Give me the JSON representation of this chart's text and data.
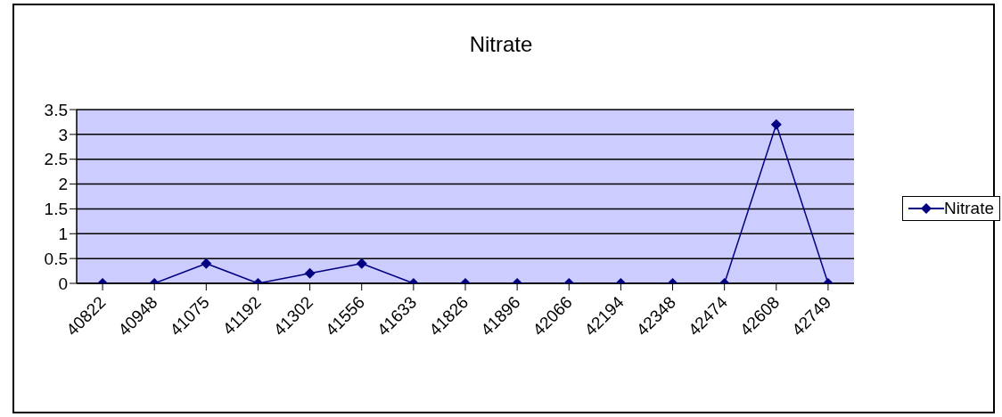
{
  "chart_data": {
    "type": "line",
    "title": "Nitrate",
    "categories": [
      "40822",
      "40948",
      "41075",
      "41192",
      "41302",
      "41556",
      "41633",
      "41826",
      "41896",
      "42066",
      "42194",
      "42348",
      "42474",
      "42608",
      "42749"
    ],
    "series": [
      {
        "name": "Nitrate",
        "color": "#000080",
        "values": [
          0,
          0,
          0.4,
          0,
          0.2,
          0.4,
          0,
          0,
          0,
          0,
          0,
          0,
          0,
          3.2,
          0
        ]
      }
    ],
    "ylim": [
      0,
      3.5
    ],
    "yticks": [
      0,
      0.5,
      1,
      1.5,
      2,
      2.5,
      3,
      3.5
    ],
    "grid": "y",
    "legend": "right",
    "marker": "diamond",
    "line_style": "solid"
  }
}
